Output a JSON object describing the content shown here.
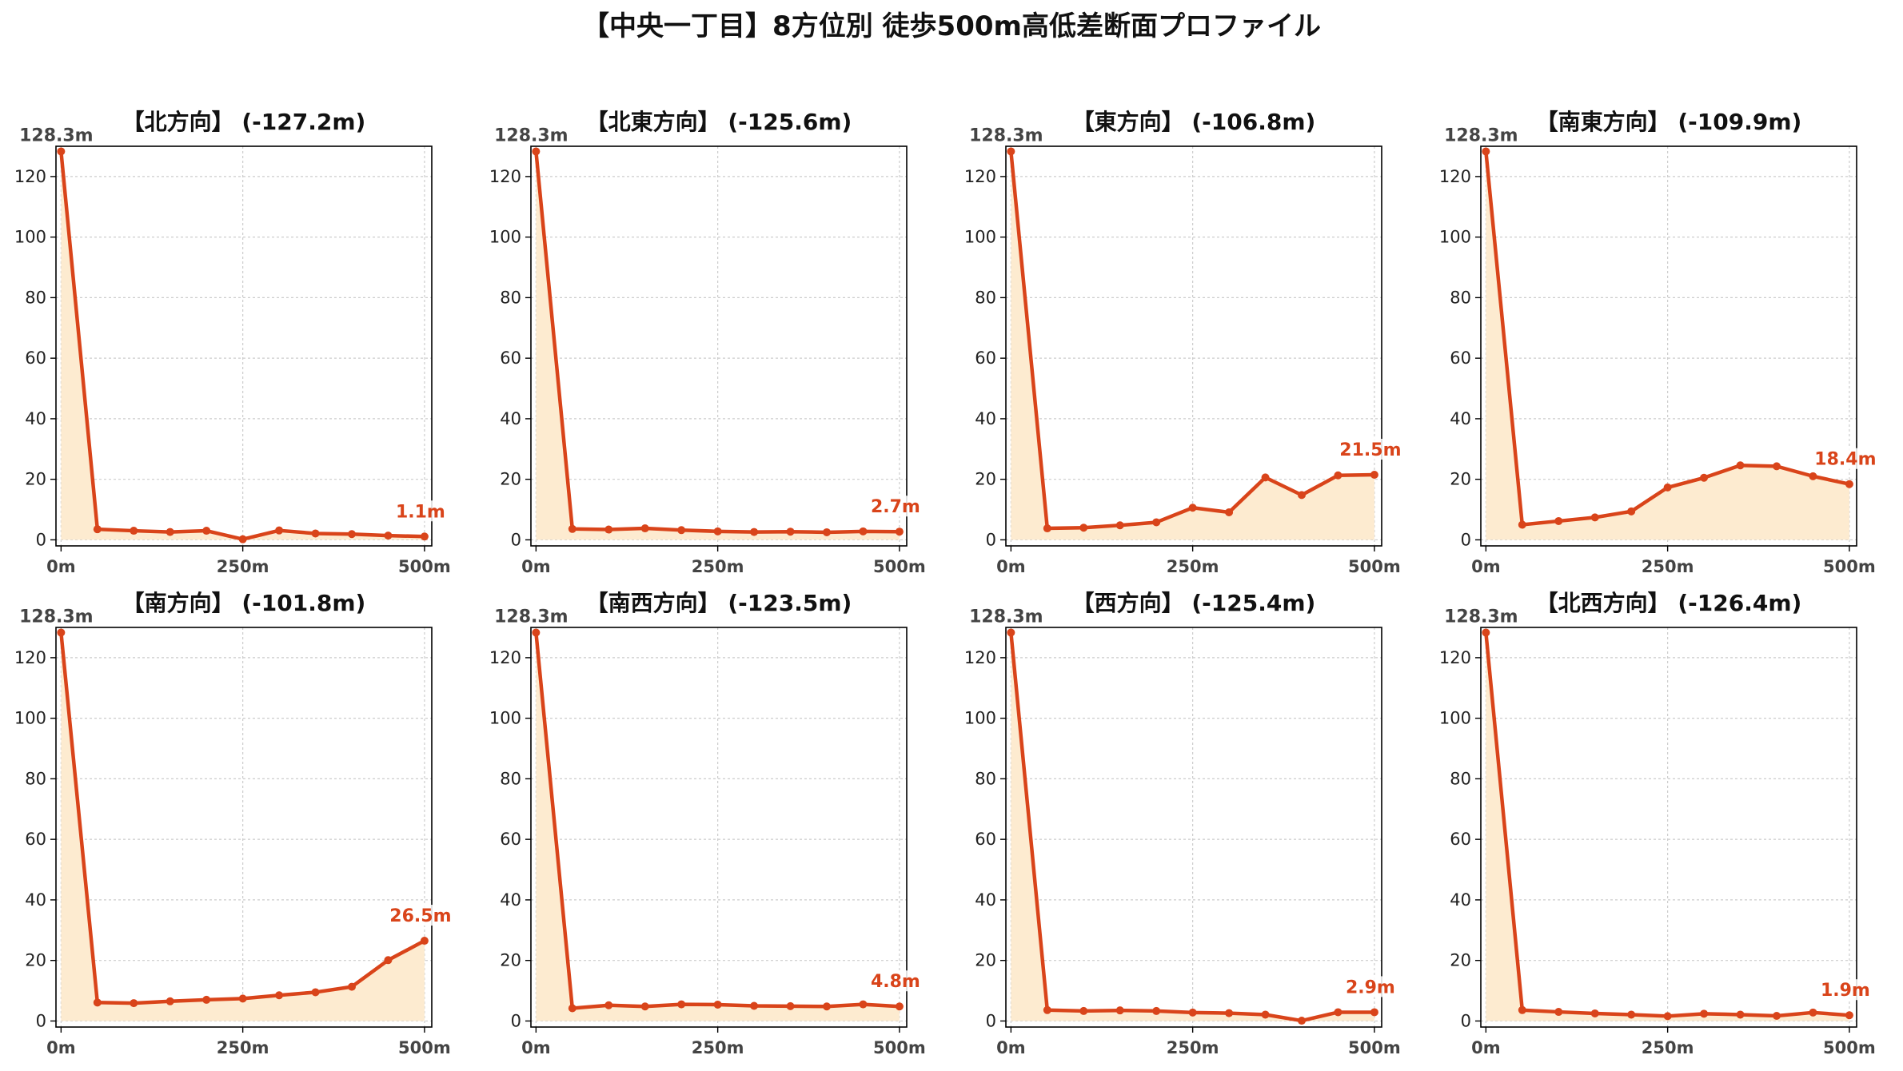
{
  "title": "【中央一丁目】8方位別 徒歩500m高低差断面プロファイル",
  "colors": {
    "line": "#d9441a",
    "fill": "#fdebd0",
    "grid": "#cccccc",
    "axis": "#000000",
    "label_start": "#444444"
  },
  "chart_data": [
    {
      "type": "line",
      "title": "【北方向】 (-127.2m)",
      "start_label": "128.3m",
      "end_label": "1.1m",
      "x": [
        0,
        50,
        100,
        150,
        200,
        250,
        300,
        350,
        400,
        450,
        500
      ],
      "y": [
        128.3,
        3.5,
        3.0,
        2.6,
        3.0,
        0.2,
        3.1,
        2.1,
        1.9,
        1.4,
        1.1
      ],
      "xticks": [
        "0m",
        "250m",
        "500m"
      ],
      "yticks": [
        0,
        20,
        40,
        60,
        80,
        100,
        120
      ],
      "xlim": [
        -7,
        510
      ],
      "ylim": [
        -2,
        130
      ],
      "grid": true
    },
    {
      "type": "line",
      "title": "【北東方向】 (-125.6m)",
      "start_label": "128.3m",
      "end_label": "2.7m",
      "x": [
        0,
        50,
        100,
        150,
        200,
        250,
        300,
        350,
        400,
        450,
        500
      ],
      "y": [
        128.3,
        3.6,
        3.4,
        3.8,
        3.2,
        2.8,
        2.6,
        2.7,
        2.5,
        2.8,
        2.7
      ],
      "xticks": [
        "0m",
        "250m",
        "500m"
      ],
      "yticks": [
        0,
        20,
        40,
        60,
        80,
        100,
        120
      ],
      "xlim": [
        -7,
        510
      ],
      "ylim": [
        -2,
        130
      ],
      "grid": true
    },
    {
      "type": "line",
      "title": "【東方向】 (-106.8m)",
      "start_label": "128.3m",
      "end_label": "21.5m",
      "x": [
        0,
        50,
        100,
        150,
        200,
        250,
        300,
        350,
        400,
        450,
        500
      ],
      "y": [
        128.3,
        3.8,
        4.0,
        4.8,
        5.8,
        10.6,
        9.1,
        20.6,
        14.8,
        21.3,
        21.5
      ],
      "xticks": [
        "0m",
        "250m",
        "500m"
      ],
      "yticks": [
        0,
        20,
        40,
        60,
        80,
        100,
        120
      ],
      "xlim": [
        -7,
        510
      ],
      "ylim": [
        -2,
        130
      ],
      "grid": true
    },
    {
      "type": "line",
      "title": "【南東方向】 (-109.9m)",
      "start_label": "128.3m",
      "end_label": "18.4m",
      "x": [
        0,
        50,
        100,
        150,
        200,
        250,
        300,
        350,
        400,
        450,
        500
      ],
      "y": [
        128.3,
        5.0,
        6.2,
        7.4,
        9.4,
        17.3,
        20.5,
        24.6,
        24.3,
        21.0,
        18.4
      ],
      "xticks": [
        "0m",
        "250m",
        "500m"
      ],
      "yticks": [
        0,
        20,
        40,
        60,
        80,
        100,
        120
      ],
      "xlim": [
        -7,
        510
      ],
      "ylim": [
        -2,
        130
      ],
      "grid": true
    },
    {
      "type": "line",
      "title": "【南方向】 (-101.8m)",
      "start_label": "128.3m",
      "end_label": "26.5m",
      "x": [
        0,
        50,
        100,
        150,
        200,
        250,
        300,
        350,
        400,
        450,
        500
      ],
      "y": [
        128.3,
        6.1,
        5.9,
        6.5,
        7.0,
        7.4,
        8.5,
        9.5,
        11.3,
        20.1,
        26.5
      ],
      "xticks": [
        "0m",
        "250m",
        "500m"
      ],
      "yticks": [
        0,
        20,
        40,
        60,
        80,
        100,
        120
      ],
      "xlim": [
        -7,
        510
      ],
      "ylim": [
        -2,
        130
      ],
      "grid": true
    },
    {
      "type": "line",
      "title": "【南西方向】 (-123.5m)",
      "start_label": "128.3m",
      "end_label": "4.8m",
      "x": [
        0,
        50,
        100,
        150,
        200,
        250,
        300,
        350,
        400,
        450,
        500
      ],
      "y": [
        128.3,
        4.2,
        5.2,
        4.8,
        5.5,
        5.4,
        5.0,
        4.9,
        4.8,
        5.5,
        4.8
      ],
      "xticks": [
        "0m",
        "250m",
        "500m"
      ],
      "yticks": [
        0,
        20,
        40,
        60,
        80,
        100,
        120
      ],
      "xlim": [
        -7,
        510
      ],
      "ylim": [
        -2,
        130
      ],
      "grid": true
    },
    {
      "type": "line",
      "title": "【西方向】 (-125.4m)",
      "start_label": "128.3m",
      "end_label": "2.9m",
      "x": [
        0,
        50,
        100,
        150,
        200,
        250,
        300,
        350,
        400,
        450,
        500
      ],
      "y": [
        128.3,
        3.6,
        3.3,
        3.5,
        3.3,
        2.8,
        2.6,
        2.1,
        0.1,
        2.9,
        2.9
      ],
      "xticks": [
        "0m",
        "250m",
        "500m"
      ],
      "yticks": [
        0,
        20,
        40,
        60,
        80,
        100,
        120
      ],
      "xlim": [
        -7,
        510
      ],
      "ylim": [
        -2,
        130
      ],
      "grid": true
    },
    {
      "type": "line",
      "title": "【北西方向】 (-126.4m)",
      "start_label": "128.3m",
      "end_label": "1.9m",
      "x": [
        0,
        50,
        100,
        150,
        200,
        250,
        300,
        350,
        400,
        450,
        500
      ],
      "y": [
        128.3,
        3.6,
        3.0,
        2.5,
        2.1,
        1.6,
        2.4,
        2.1,
        1.7,
        2.8,
        1.9
      ],
      "xticks": [
        "0m",
        "250m",
        "500m"
      ],
      "yticks": [
        0,
        20,
        40,
        60,
        80,
        100,
        120
      ],
      "xlim": [
        -7,
        510
      ],
      "ylim": [
        -2,
        130
      ],
      "grid": true
    }
  ]
}
